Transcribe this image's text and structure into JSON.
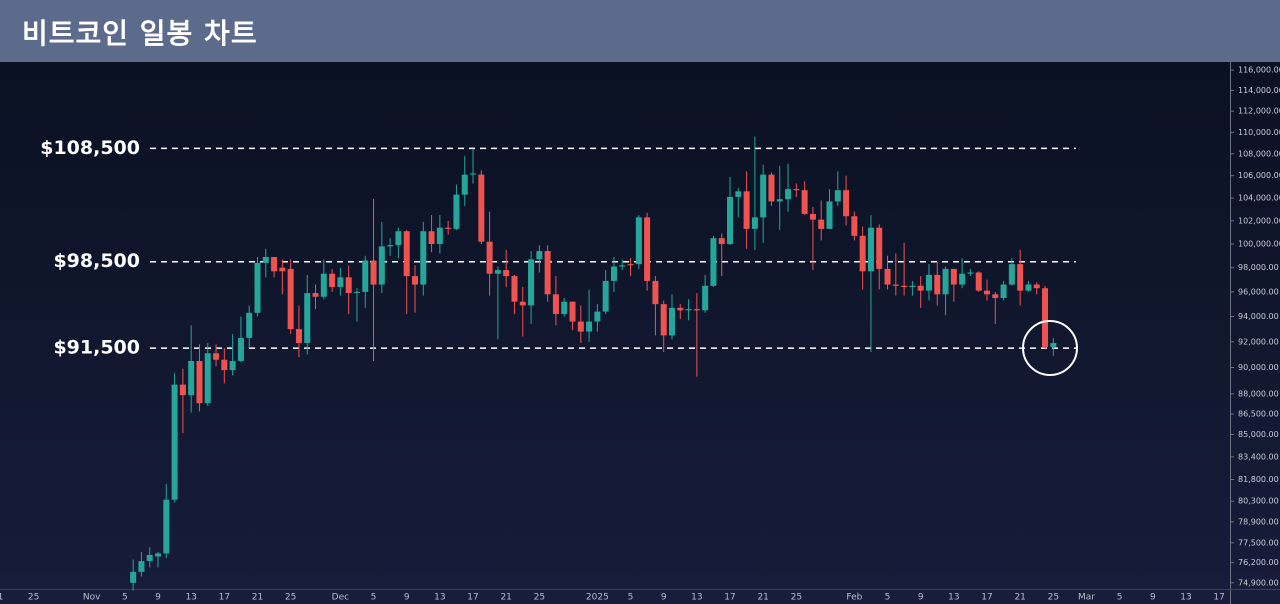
{
  "chart_data": {
    "type": "candlestick",
    "title": "비트코인 일봉 차트",
    "log_scale": true,
    "up_color": "#26a69a",
    "down_color": "#ef5350",
    "ylim": [
      74440,
      116800
    ],
    "yticks": [
      {
        "value": 116000,
        "label": "116,000.00"
      },
      {
        "value": 114000,
        "label": "114,000.00"
      },
      {
        "value": 112000,
        "label": "112,000.00"
      },
      {
        "value": 110000,
        "label": "110,000.00"
      },
      {
        "value": 108000,
        "label": "108,000.00"
      },
      {
        "value": 106000,
        "label": "106,000.00"
      },
      {
        "value": 104000,
        "label": "104,000.00"
      },
      {
        "value": 102000,
        "label": "102,000.00"
      },
      {
        "value": 100000,
        "label": "100,000.00"
      },
      {
        "value": 98000,
        "label": "98,000.00"
      },
      {
        "value": 96000,
        "label": "96,000.00"
      },
      {
        "value": 94000,
        "label": "94,000.00"
      },
      {
        "value": 92000,
        "label": "92,000.00"
      },
      {
        "value": 90000,
        "label": "90,000.00"
      },
      {
        "value": 88000,
        "label": "88,000.00"
      },
      {
        "value": 86500,
        "label": "86,500.00"
      },
      {
        "value": 85000,
        "label": "85,000.00"
      },
      {
        "value": 83400,
        "label": "83,400.00"
      },
      {
        "value": 81800,
        "label": "81,800.00"
      },
      {
        "value": 80300,
        "label": "80,300.00"
      },
      {
        "value": 78900,
        "label": "78,900.00"
      },
      {
        "value": 77500,
        "label": "77,500.00"
      },
      {
        "value": 76200,
        "label": "76,200.00"
      },
      {
        "value": 74900,
        "label": "74,900.00"
      }
    ],
    "levels": [
      {
        "value": 108500,
        "label": "$108,500"
      },
      {
        "value": 98500,
        "label": "$98,500"
      },
      {
        "value": 91500,
        "label": "$91,500"
      }
    ],
    "categories": [
      "1",
      null,
      null,
      null,
      "25",
      null,
      null,
      null,
      null,
      null,
      null,
      "Nov",
      null,
      null,
      null,
      "5",
      null,
      null,
      null,
      "9",
      null,
      null,
      null,
      "13",
      null,
      null,
      null,
      "17",
      null,
      null,
      null,
      "21",
      null,
      null,
      null,
      "25",
      null,
      null,
      null,
      null,
      null,
      "Dec",
      null,
      null,
      null,
      "5",
      null,
      null,
      null,
      "9",
      null,
      null,
      null,
      "13",
      null,
      null,
      null,
      "17",
      null,
      null,
      null,
      "21",
      null,
      null,
      null,
      "25",
      null,
      null,
      null,
      null,
      null,
      null,
      "2025",
      null,
      null,
      null,
      "5",
      null,
      null,
      null,
      "9",
      null,
      null,
      null,
      "13",
      null,
      null,
      null,
      "17",
      null,
      null,
      null,
      "21",
      null,
      null,
      null,
      "25",
      null,
      null,
      null,
      null,
      null,
      null,
      "Feb",
      null,
      null,
      null,
      "5",
      null,
      null,
      null,
      "9",
      null,
      null,
      null,
      "13",
      null,
      null,
      null,
      "17",
      null,
      null,
      null,
      "21",
      null,
      null,
      null,
      "25",
      null,
      null,
      null,
      "Mar",
      null,
      null,
      null,
      "5",
      null,
      null,
      null,
      "9",
      null,
      null,
      null,
      "13",
      null,
      null,
      null,
      "17",
      null
    ],
    "open": [
      null,
      null,
      null,
      null,
      null,
      null,
      null,
      null,
      null,
      null,
      null,
      null,
      null,
      null,
      null,
      null,
      74900,
      75600,
      76300,
      76600,
      76800,
      80400,
      88700,
      87900,
      90500,
      87300,
      91100,
      90600,
      89800,
      90500,
      92300,
      94300,
      98400,
      98900,
      98000,
      97900,
      93000,
      91900,
      95900,
      95600,
      97500,
      96400,
      97200,
      95900,
      96000,
      98600,
      96600,
      99800,
      99900,
      101100,
      97300,
      96600,
      101100,
      100000,
      101400,
      101300,
      104300,
      106100,
      106100,
      100200,
      97500,
      97800,
      97300,
      95200,
      94900,
      98700,
      99400,
      95800,
      94200,
      95200,
      93600,
      92800,
      93600,
      94400,
      96900,
      98100,
      98300,
      98300,
      102300,
      96900,
      95000,
      92500,
      94700,
      94500,
      94600,
      94500,
      96500,
      100500,
      100000,
      104100,
      104600,
      101300,
      102300,
      106100,
      103700,
      103900,
      104800,
      104700,
      102600,
      102100,
      101300,
      103700,
      104700,
      102400,
      100700,
      97700,
      101400,
      97900,
      96600,
      96500,
      96400,
      96500,
      96100,
      97400,
      95800,
      97900,
      96600,
      97500,
      97600,
      96100,
      95800,
      95500,
      96600,
      98300,
      96100,
      96600,
      96300,
      91600,
      null,
      null,
      null,
      null,
      null,
      null,
      null,
      null,
      null,
      null,
      null,
      null,
      null,
      null,
      null,
      null,
      null,
      null,
      null,
      null,
      null
    ],
    "high": [
      null,
      null,
      null,
      null,
      null,
      null,
      null,
      null,
      null,
      null,
      null,
      null,
      null,
      null,
      null,
      null,
      76400,
      76900,
      77200,
      76900,
      81500,
      89600,
      89900,
      93300,
      91800,
      91900,
      91800,
      91500,
      92600,
      94000,
      94900,
      98900,
      99600,
      98900,
      98700,
      98700,
      94900,
      97400,
      96600,
      98700,
      97900,
      98000,
      98200,
      96300,
      99000,
      103900,
      101900,
      100500,
      101400,
      101200,
      98200,
      101900,
      102500,
      102500,
      102000,
      105200,
      107800,
      108400,
      106500,
      102800,
      98100,
      99500,
      97400,
      96400,
      99400,
      99900,
      99900,
      97300,
      95500,
      95200,
      94900,
      96200,
      95000,
      97800,
      98900,
      98700,
      98800,
      102500,
      102700,
      97300,
      95300,
      95800,
      95000,
      95400,
      95900,
      97400,
      100700,
      100900,
      105900,
      104900,
      106400,
      109600,
      107000,
      106300,
      106900,
      107100,
      105300,
      105500,
      103200,
      103800,
      104800,
      106400,
      106000,
      102800,
      101500,
      102500,
      101700,
      99000,
      99200,
      100100,
      96900,
      97300,
      98300,
      98500,
      98100,
      97900,
      98800,
      97900,
      97700,
      97000,
      96000,
      96900,
      98800,
      99500,
      96900,
      96800,
      96500,
      92300,
      null,
      null,
      null,
      null,
      null,
      null,
      null,
      null,
      null,
      null,
      null,
      null,
      null,
      null,
      null,
      null,
      null,
      null,
      null,
      null,
      null
    ],
    "low": [
      null,
      null,
      null,
      null,
      null,
      null,
      null,
      null,
      null,
      null,
      null,
      null,
      null,
      null,
      null,
      null,
      74400,
      75300,
      75900,
      75900,
      76500,
      80200,
      85100,
      86600,
      86700,
      87100,
      90100,
      88800,
      89400,
      90400,
      91500,
      94000,
      97200,
      97200,
      95800,
      92600,
      90800,
      91000,
      94600,
      95400,
      96000,
      95700,
      94200,
      93600,
      94700,
      90500,
      95900,
      99000,
      98800,
      94200,
      94300,
      95700,
      99300,
      99200,
      100800,
      101200,
      103300,
      105300,
      100000,
      95700,
      92200,
      96400,
      94200,
      92400,
      93400,
      97600,
      95200,
      93300,
      94000,
      92900,
      91900,
      92000,
      92800,
      94200,
      96000,
      97800,
      97300,
      97900,
      96100,
      92500,
      91200,
      92200,
      93800,
      93700,
      89300,
      94300,
      96400,
      97300,
      99900,
      102300,
      99600,
      99500,
      100100,
      103300,
      101200,
      102800,
      104100,
      102500,
      97800,
      100300,
      101300,
      103300,
      101600,
      100300,
      96200,
      91200,
      96200,
      96200,
      95700,
      95700,
      95700,
      94700,
      95300,
      94900,
      94100,
      95200,
      96300,
      97300,
      96000,
      95300,
      93400,
      95300,
      96500,
      94900,
      96000,
      95800,
      91400,
      90900,
      null,
      null,
      null,
      null,
      null,
      null,
      null,
      null,
      null,
      null,
      null,
      null,
      null,
      null,
      null,
      null,
      null,
      null,
      null,
      null,
      null
    ],
    "close": [
      null,
      null,
      null,
      null,
      null,
      null,
      null,
      null,
      null,
      null,
      null,
      null,
      null,
      null,
      null,
      null,
      75600,
      76300,
      76700,
      76800,
      80400,
      88700,
      87900,
      90500,
      87300,
      91100,
      90600,
      89800,
      90500,
      92300,
      94300,
      98400,
      98900,
      97700,
      97700,
      93000,
      91900,
      95900,
      95600,
      97500,
      96400,
      97200,
      95900,
      96000,
      98600,
      96600,
      99800,
      99900,
      101100,
      97300,
      96600,
      101100,
      100000,
      101400,
      101300,
      104300,
      106100,
      106200,
      100200,
      97500,
      97800,
      97300,
      95200,
      94900,
      98700,
      99400,
      95800,
      94200,
      95200,
      93600,
      92800,
      93600,
      94400,
      96900,
      98100,
      98200,
      98200,
      102300,
      96900,
      95000,
      92500,
      94700,
      94500,
      94600,
      94500,
      96500,
      100500,
      100000,
      104100,
      104600,
      101300,
      102300,
      106100,
      103700,
      103900,
      104800,
      104700,
      102600,
      102100,
      101300,
      103700,
      104700,
      102400,
      100700,
      97700,
      101400,
      97900,
      96600,
      96500,
      96400,
      96500,
      96100,
      97400,
      95800,
      97900,
      96600,
      97500,
      97600,
      96100,
      95800,
      95500,
      96600,
      98300,
      96100,
      96600,
      96300,
      91600,
      91900,
      null,
      null,
      null,
      null,
      null,
      null,
      null,
      null,
      null,
      null,
      null,
      null,
      null,
      null,
      null,
      null,
      null,
      null,
      null,
      null,
      null
    ]
  }
}
